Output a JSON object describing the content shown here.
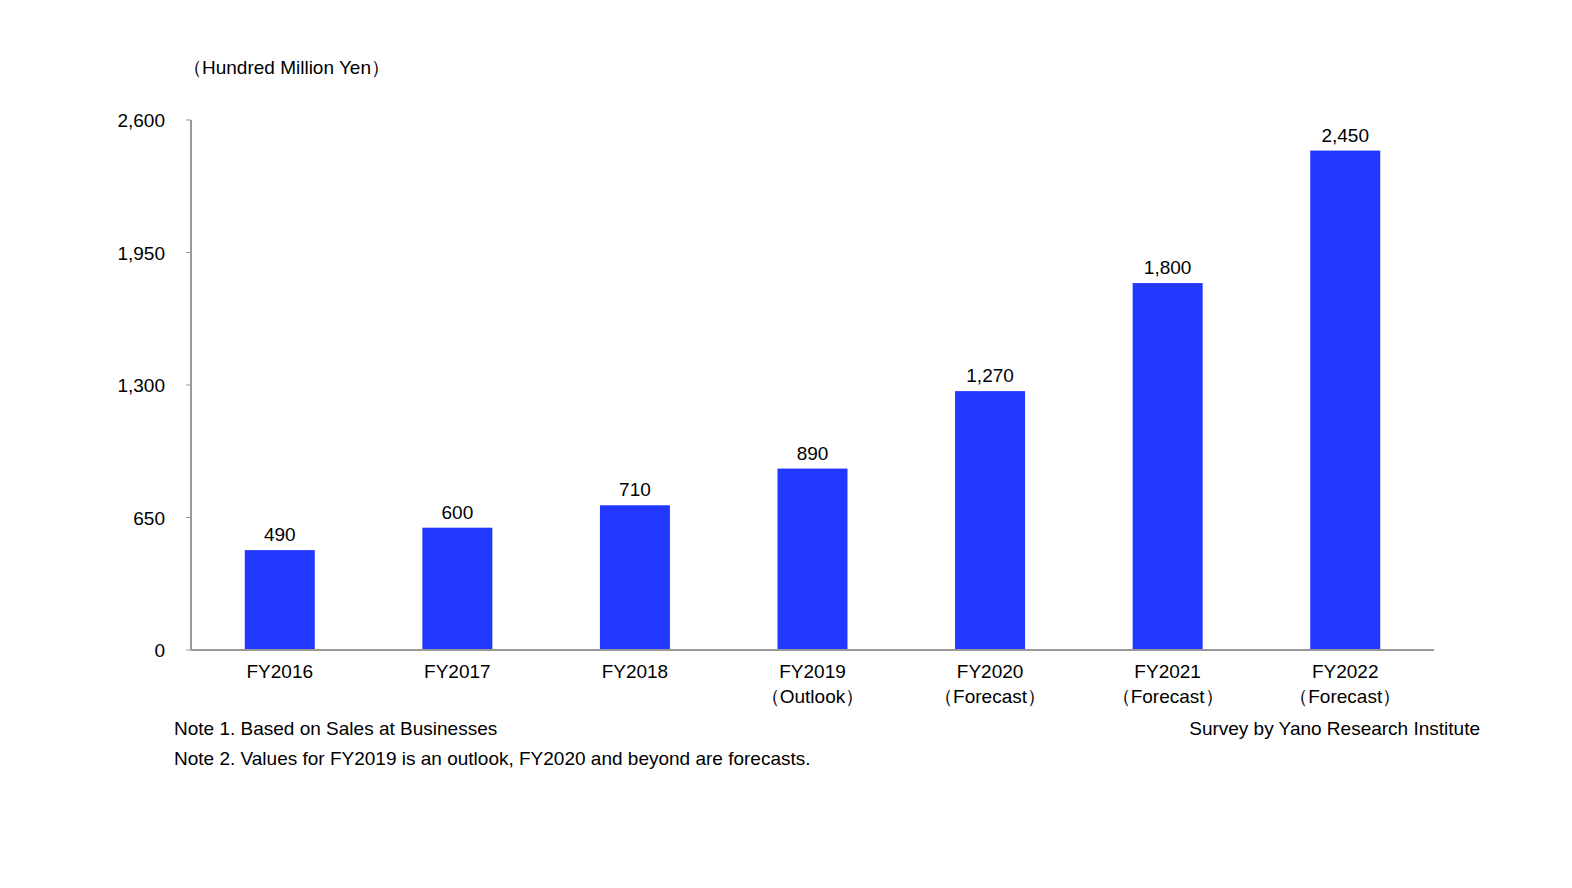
{
  "chart_data": {
    "type": "bar",
    "y_label": "（Hundred Million Yen）",
    "categories": [
      "FY2016",
      "FY2017",
      "FY2018",
      "FY2019\n（Outlook）",
      "FY2020\n（Forecast）",
      "FY2021\n（Forecast）",
      "FY2022\n（Forecast）"
    ],
    "values": [
      490,
      600,
      710,
      890,
      1270,
      1800,
      2450
    ],
    "value_labels": [
      "490",
      "600",
      "710",
      "890",
      "1,270",
      "1,800",
      "2,450"
    ],
    "color": "#2338ff",
    "ylim": [
      0,
      2600
    ],
    "yticks": [
      0,
      650,
      {
        "value": 1300,
        "label": "1,300"
      },
      {
        "value": 1950,
        "label": "1,950"
      },
      {
        "value": 2600,
        "label": "2,600"
      }
    ],
    "grid": false,
    "data_labels": true,
    "notes": [
      "Note 1. Based on Sales at Businesses",
      "Note 2. Values for FY2019 is an outlook, FY2020 and beyond are forecasts."
    ],
    "source": "Survey by Yano Research Institute"
  }
}
